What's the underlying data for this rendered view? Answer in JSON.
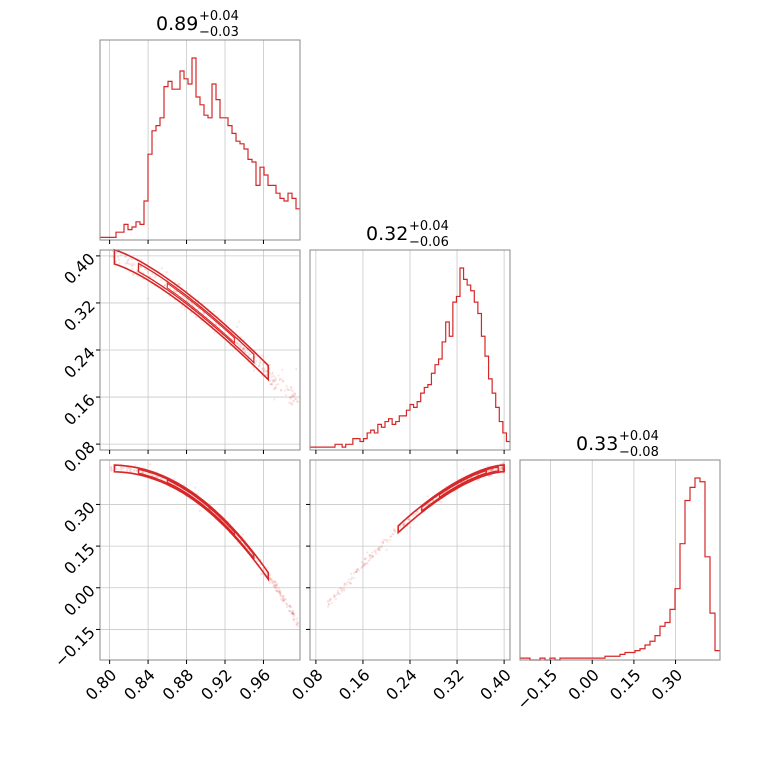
{
  "chart_data": {
    "type": "corner",
    "line_color": "#d62728",
    "grid": true,
    "titles": [
      {
        "median": "0.89",
        "plus": "+0.04",
        "minus": "−0.03"
      },
      {
        "median": "0.32",
        "plus": "+0.04",
        "minus": "−0.06"
      },
      {
        "median": "0.33",
        "plus": "+0.04",
        "minus": "−0.08"
      }
    ],
    "params": [
      {
        "range": [
          0.79,
          0.998
        ],
        "ticks": [
          0.8,
          0.84,
          0.88,
          0.92,
          0.96
        ],
        "tick_labels": [
          "0.80",
          "0.84",
          "0.88",
          "0.92",
          "0.96"
        ]
      },
      {
        "range": [
          0.07,
          0.41
        ],
        "ticks": [
          0.08,
          0.16,
          0.24,
          0.32,
          0.4
        ],
        "tick_labels": [
          "0.08",
          "0.16",
          "0.24",
          "0.32",
          "0.40"
        ]
      },
      {
        "range": [
          -0.26,
          0.46
        ],
        "ticks": [
          -0.15,
          0.0,
          0.15,
          0.3
        ],
        "tick_labels": [
          "−0.15",
          "0.00",
          "0.15",
          "0.30"
        ]
      }
    ],
    "histograms": [
      {
        "param": 0,
        "bin_start": 0.79,
        "bin_end": 0.998,
        "counts": [
          1,
          1,
          1,
          1,
          3,
          3,
          6,
          4,
          5,
          7,
          6,
          15,
          33,
          42,
          44,
          47,
          59,
          61,
          58,
          58,
          65,
          62,
          60,
          70,
          55,
          52,
          48,
          47,
          60,
          54,
          47,
          47,
          44,
          41,
          38,
          37,
          35,
          31,
          30,
          21,
          28,
          25,
          21,
          21,
          18,
          16,
          15,
          18,
          16,
          12
        ]
      },
      {
        "param": 1,
        "bin_start": 0.07,
        "bin_end": 0.41,
        "counts": [
          1,
          1,
          1,
          1,
          1,
          1,
          1,
          2,
          2,
          1,
          2,
          2,
          4,
          4,
          3,
          4,
          6,
          7,
          6,
          9,
          8,
          10,
          11,
          9,
          10,
          12,
          12,
          14,
          16,
          15,
          17,
          20,
          22,
          23,
          27,
          30,
          32,
          38,
          45,
          40,
          52,
          54,
          64,
          60,
          58,
          56,
          52,
          48,
          40,
          33,
          25,
          20,
          15,
          10,
          6,
          3
        ]
      },
      {
        "param": 2,
        "bin_start": -0.26,
        "bin_end": 0.46,
        "counts": [
          1,
          1,
          0,
          0,
          1,
          0,
          1,
          0,
          1,
          1,
          1,
          1,
          1,
          1,
          1,
          1,
          1,
          2,
          2,
          2,
          3,
          4,
          4,
          5,
          6,
          8,
          10,
          13,
          18,
          20,
          27,
          38,
          62,
          85,
          92,
          97,
          95,
          55,
          25,
          5
        ]
      }
    ],
    "pairs": [
      {
        "x_param": 0,
        "y_param": 1,
        "relation": "y ≈ 0.40 − (0.40−0.16)·((x−0.80)/0.19)^1.35"
      },
      {
        "x_param": 0,
        "y_param": 2,
        "relation": "y ≈ 0.43 − 0.55·((x−0.80)/0.195)^2.1"
      },
      {
        "x_param": 1,
        "y_param": 2,
        "relation": "y ≈ 0.43 − 0.55·((0.40−x)/0.32)^1.6"
      }
    ]
  }
}
